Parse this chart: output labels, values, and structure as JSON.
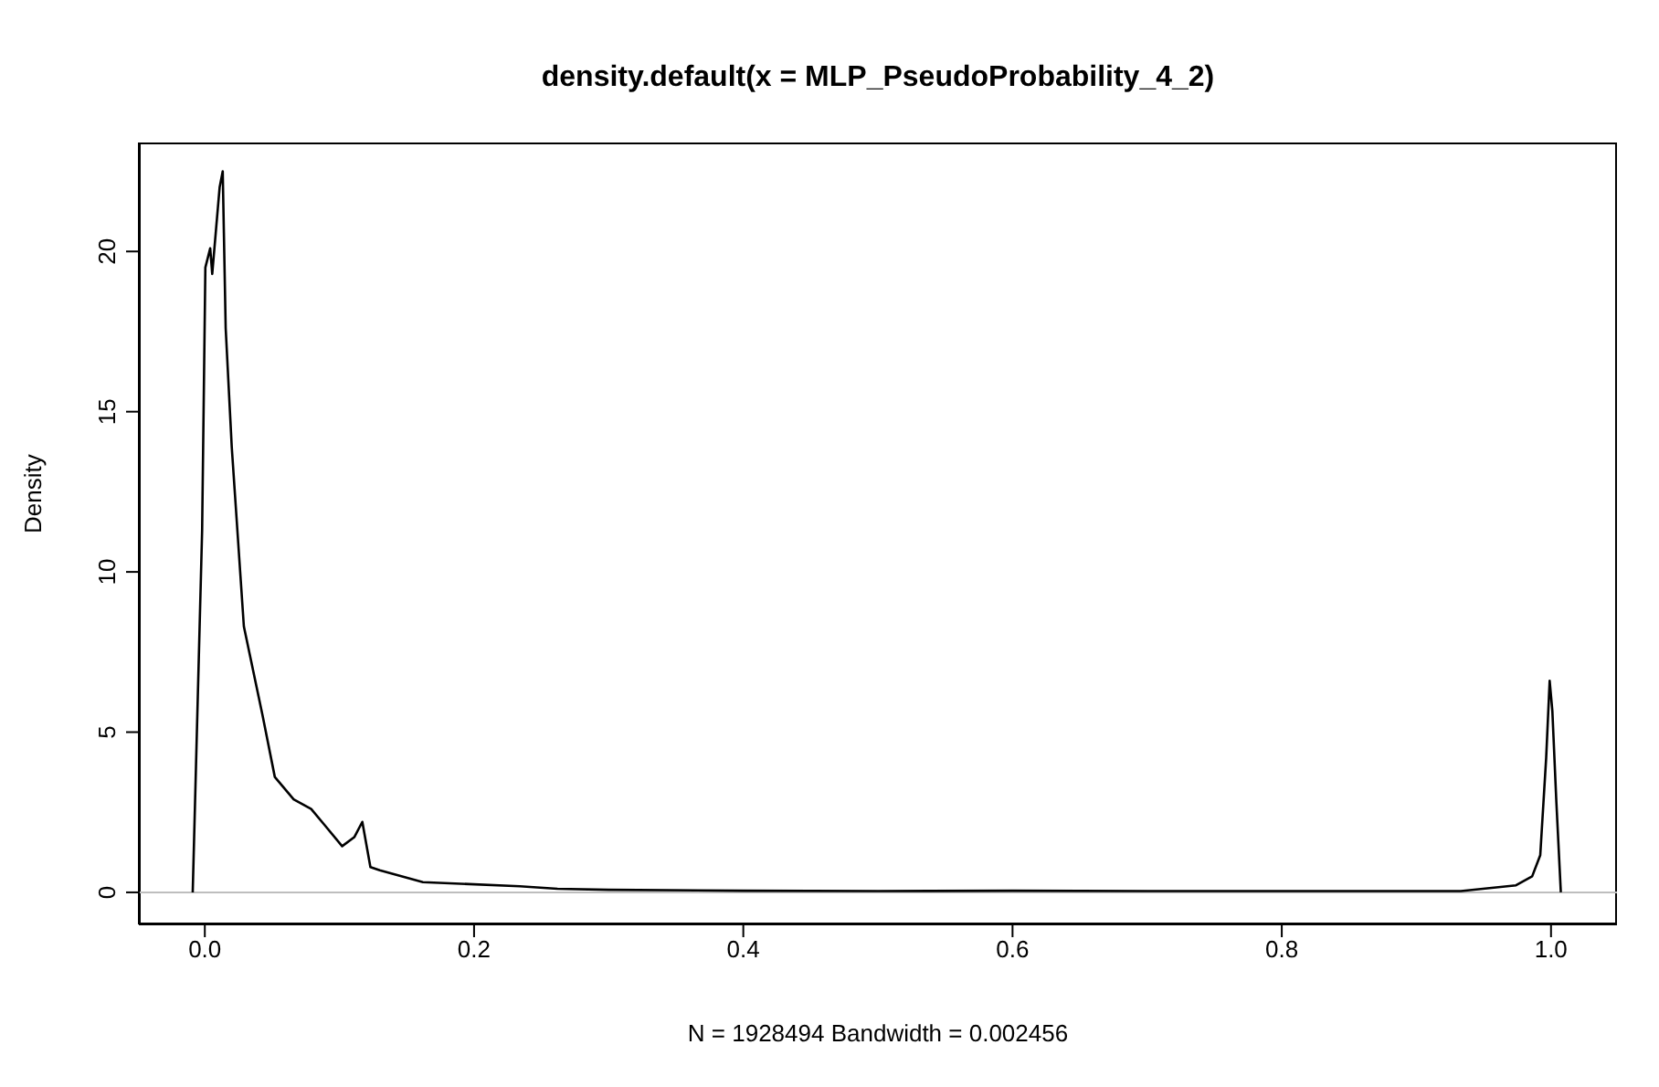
{
  "chart_data": {
    "type": "line",
    "title": "density.default(x = MLP_PseudoProbability_4_2)",
    "xlabel": "N = 1928494   Bandwidth = 0.002456",
    "ylabel": "Density",
    "series": [
      {
        "color": "#000000",
        "x": [
          -0.009,
          -0.002,
          0.0004,
          0.004,
          0.0055,
          0.011,
          0.0133,
          0.0155,
          0.02,
          0.029,
          0.043,
          0.052,
          0.066,
          0.079,
          0.089,
          0.102,
          0.111,
          0.117,
          0.123,
          0.13,
          0.162,
          0.234,
          0.262,
          0.3,
          0.4,
          0.5,
          0.6,
          0.7,
          0.8,
          0.9,
          0.933,
          0.974,
          0.986,
          0.992,
          0.9964,
          0.999,
          1.001,
          1.004,
          1.0073
        ],
        "values": [
          0,
          11.3,
          19.5,
          20.1,
          19.3,
          22.0,
          22.5,
          17.6,
          13.9,
          8.3,
          5.5,
          3.6,
          2.9,
          2.6,
          2.1,
          1.44,
          1.72,
          2.2,
          0.79,
          0.69,
          0.32,
          0.19,
          0.11,
          0.08,
          0.05,
          0.04,
          0.05,
          0.04,
          0.04,
          0.04,
          0.04,
          0.22,
          0.5,
          1.16,
          4.2,
          6.6,
          5.66,
          2.8,
          0
        ]
      }
    ],
    "ref_lines": [
      {
        "axis": "y",
        "value": 0,
        "color": "#bebebe"
      }
    ],
    "xlim": [
      -0.049,
      1.049
    ],
    "ylim": [
      -1.0,
      23.4
    ],
    "xticks": [
      {
        "value": 0,
        "label": "0.0"
      },
      0.2,
      0.4,
      0.6,
      0.8,
      {
        "value": 1,
        "label": "1.0"
      }
    ],
    "yticks": [
      0,
      5,
      10,
      15,
      20
    ],
    "grid": false,
    "legend": false,
    "marker": "none",
    "line_style": "solid"
  }
}
